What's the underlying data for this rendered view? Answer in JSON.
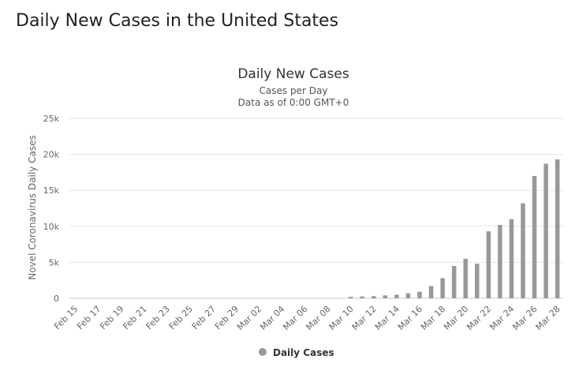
{
  "page": {
    "title": "Daily New Cases in the United States"
  },
  "chart_data": {
    "type": "bar",
    "title": "Daily New Cases",
    "subtitle": "Cases per Day",
    "subtitle2": "Data as of 0:00 GMT+0",
    "xlabel": "",
    "ylabel": "Novel Coronavirus Daily Cases",
    "ylim": [
      0,
      25000
    ],
    "yticks": [
      {
        "value": 0,
        "label": "0"
      },
      {
        "value": 5000,
        "label": "5k"
      },
      {
        "value": 10000,
        "label": "10k"
      },
      {
        "value": 15000,
        "label": "15k"
      },
      {
        "value": 20000,
        "label": "20k"
      },
      {
        "value": 25000,
        "label": "25k"
      }
    ],
    "grid": true,
    "legend_position": "bottom",
    "bar_color": "#999999",
    "categories": [
      "Feb 15",
      "Feb 16",
      "Feb 17",
      "Feb 18",
      "Feb 19",
      "Feb 20",
      "Feb 21",
      "Feb 22",
      "Feb 23",
      "Feb 24",
      "Feb 25",
      "Feb 26",
      "Feb 27",
      "Feb 28",
      "Feb 29",
      "Mar 01",
      "Mar 02",
      "Mar 03",
      "Mar 04",
      "Mar 05",
      "Mar 06",
      "Mar 07",
      "Mar 08",
      "Mar 09",
      "Mar 10",
      "Mar 11",
      "Mar 12",
      "Mar 13",
      "Mar 14",
      "Mar 15",
      "Mar 16",
      "Mar 17",
      "Mar 18",
      "Mar 19",
      "Mar 20",
      "Mar 21",
      "Mar 22",
      "Mar 23",
      "Mar 24",
      "Mar 25",
      "Mar 26",
      "Mar 27",
      "Mar 28"
    ],
    "tick_labels": [
      "Feb 15",
      "Feb 17",
      "Feb 19",
      "Feb 21",
      "Feb 23",
      "Feb 25",
      "Feb 27",
      "Feb 29",
      "Mar 02",
      "Mar 04",
      "Mar 06",
      "Mar 08",
      "Mar 10",
      "Mar 12",
      "Mar 14",
      "Mar 16",
      "Mar 18",
      "Mar 20",
      "Mar 22",
      "Mar 24",
      "Mar 26",
      "Mar 28"
    ],
    "series": [
      {
        "name": "Daily Cases",
        "values": [
          0,
          0,
          0,
          0,
          0,
          0,
          0,
          0,
          0,
          0,
          0,
          0,
          0,
          0,
          0,
          0,
          0,
          0,
          0,
          0,
          0,
          0,
          0,
          0,
          200,
          250,
          300,
          400,
          500,
          700,
          900,
          1700,
          2800,
          4500,
          5500,
          4800,
          9300,
          10200,
          11000,
          13200,
          17000,
          18700,
          19300
        ]
      }
    ]
  }
}
